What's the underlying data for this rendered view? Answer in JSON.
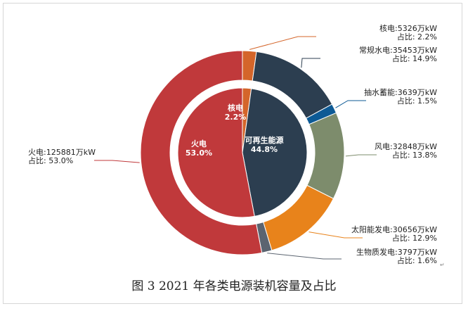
{
  "caption": "图 3 2021 年各类电源装机容量及占比",
  "return_mark": "↵",
  "chart_data": {
    "type": "pie",
    "outer": {
      "slices": [
        {
          "name": "核电",
          "capacity": "5326万kW",
          "percent": 2.2,
          "color": "#d4652a"
        },
        {
          "name": "常规水电",
          "capacity": "35453万kW",
          "percent": 14.9,
          "color": "#2c3e50"
        },
        {
          "name": "抽水蓄能",
          "capacity": "3639万kW",
          "percent": 1.5,
          "color": "#0d5a95"
        },
        {
          "name": "风电",
          "capacity": "32848万kW",
          "percent": 13.8,
          "color": "#7d8c6c"
        },
        {
          "name": "太阳能发电",
          "capacity": "30656万kW",
          "percent": 12.9,
          "color": "#e8831b"
        },
        {
          "name": "生物质发电",
          "capacity": "3797万kW",
          "percent": 1.6,
          "color": "#5b6470"
        },
        {
          "name": "火电",
          "capacity": "125881万kW",
          "percent": 53.0,
          "color": "#c0393b"
        }
      ],
      "labels": [
        {
          "line1": "核电:5326万kW",
          "line2": "占比: 2.2%"
        },
        {
          "line1": "常规水电:35453万kW",
          "line2": "占比: 14.9%"
        },
        {
          "line1": "抽水蓄能:3639万kW",
          "line2": "占比: 1.5%"
        },
        {
          "line1": "风电:32848万kW",
          "line2": "占比: 13.8%"
        },
        {
          "line1": "太阳能发电:30656万kW",
          "line2": "占比: 12.9%"
        },
        {
          "line1": "生物质发电:3797万kW",
          "line2": "占比: 1.6%"
        },
        {
          "line1": "火电:125881万kW",
          "line2": "占比: 53.0%"
        }
      ]
    },
    "inner": {
      "slices": [
        {
          "name": "核电",
          "percent": 2.2,
          "label": "2.2%",
          "color": "#d4652a"
        },
        {
          "name": "可再生能源",
          "percent": 44.8,
          "label": "44.8%",
          "color": "#2c3e50"
        },
        {
          "name": "火电",
          "percent": 53.0,
          "label": "53.0%",
          "color": "#c0393b"
        }
      ]
    }
  }
}
